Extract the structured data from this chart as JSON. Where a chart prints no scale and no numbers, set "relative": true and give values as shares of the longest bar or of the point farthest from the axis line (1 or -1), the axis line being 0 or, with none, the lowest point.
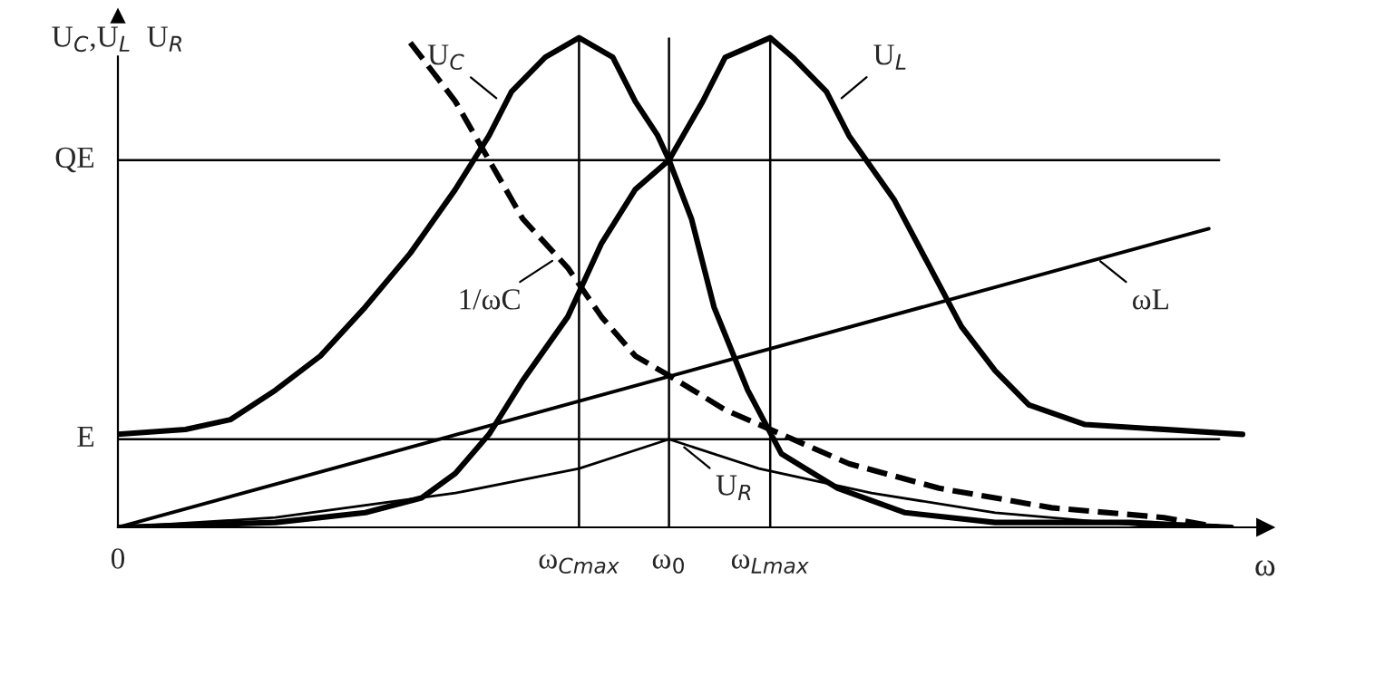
{
  "chart_data": {
    "type": "line",
    "xlabel": "ω",
    "ylabel": "U$_{C}$,U$_{L}$  U$_{R}$",
    "xlim": [
      0,
      1.02
    ],
    "relative": true,
    "xticks": [
      {
        "value": 0,
        "label": "0"
      },
      {
        "value": 0.41,
        "label": "ω$_{Cmax}$"
      },
      {
        "value": 0.49,
        "label": "ω$_{0}$"
      },
      {
        "value": 0.58,
        "label": "ω$_{Lmax}$"
      }
    ],
    "grid": false,
    "legend": false,
    "series": [
      {
        "color": "#000000",
        "line_style": "solid",
        "x": [
          0,
          0.06,
          0.1,
          0.14,
          0.18,
          0.22,
          0.26,
          0.3,
          0.33,
          0.35,
          0.38,
          0.41,
          0.44,
          0.46,
          0.48,
          0.49,
          0.51,
          0.53,
          0.56,
          0.59,
          0.64,
          0.7,
          0.78,
          0.9,
          0.99
        ],
        "values": [
          0.19,
          0.2,
          0.22,
          0.28,
          0.35,
          0.45,
          0.56,
          0.69,
          0.8,
          0.89,
          0.96,
          1.0,
          0.96,
          0.87,
          0.8,
          0.75,
          0.63,
          0.45,
          0.28,
          0.15,
          0.08,
          0.03,
          0.01,
          0.01,
          0.0
        ]
      },
      {
        "color": "#000000",
        "line_style": "solid",
        "x": [
          0,
          0.14,
          0.22,
          0.27,
          0.3,
          0.33,
          0.36,
          0.4,
          0.43,
          0.46,
          0.49,
          0.52,
          0.54,
          0.58,
          0.6,
          0.63,
          0.65,
          0.69,
          0.72,
          0.75,
          0.78,
          0.81,
          0.86,
          0.93,
          1.0
        ],
        "values": [
          0.0,
          0.01,
          0.03,
          0.06,
          0.11,
          0.19,
          0.3,
          0.43,
          0.58,
          0.69,
          0.75,
          0.87,
          0.96,
          1.0,
          0.96,
          0.89,
          0.8,
          0.67,
          0.54,
          0.41,
          0.32,
          0.25,
          0.21,
          0.2,
          0.19
        ]
      },
      {
        "color": "#000000",
        "line_style": "dashed",
        "x": [
          0.26,
          0.3,
          0.33,
          0.36,
          0.4,
          0.43,
          0.46,
          0.49,
          0.54,
          0.59,
          0.65,
          0.73,
          0.83,
          0.93,
          0.98
        ],
        "values": [
          0.99,
          0.87,
          0.75,
          0.63,
          0.53,
          0.43,
          0.35,
          0.31,
          0.24,
          0.19,
          0.13,
          0.08,
          0.04,
          0.02,
          0.0
        ]
      },
      {
        "color": "#000000",
        "line_style": "solid",
        "x": [
          0,
          0.97
        ],
        "values": [
          0,
          0.61
        ]
      },
      {
        "color": "#000000",
        "line_style": "solid",
        "x": [
          0,
          0.14,
          0.3,
          0.41,
          0.49,
          0.57,
          0.67,
          0.78,
          0.93
        ],
        "values": [
          0,
          0.02,
          0.07,
          0.12,
          0.18,
          0.12,
          0.07,
          0.03,
          0.0
        ]
      }
    ],
    "ref_lines": [
      {
        "axis": "y",
        "value": 0.18,
        "label": "E"
      },
      {
        "axis": "y",
        "value": 0.75,
        "label": "QE"
      },
      {
        "axis": "x",
        "value": 0.41
      },
      {
        "axis": "x",
        "value": 0.49
      },
      {
        "axis": "x",
        "value": 0.58
      }
    ],
    "annotations": [
      {
        "text": "U$_{C}$",
        "x": 0.34,
        "y": 0.87
      },
      {
        "text": "U$_{L}$",
        "x": 0.64,
        "y": 0.87
      },
      {
        "text": "1/ωC",
        "x": 0.39,
        "y": 0.55
      },
      {
        "text": "ωL",
        "x": 0.87,
        "y": 0.55
      },
      {
        "text": "U$_{R}$",
        "x": 0.5,
        "y": 0.17
      }
    ]
  }
}
